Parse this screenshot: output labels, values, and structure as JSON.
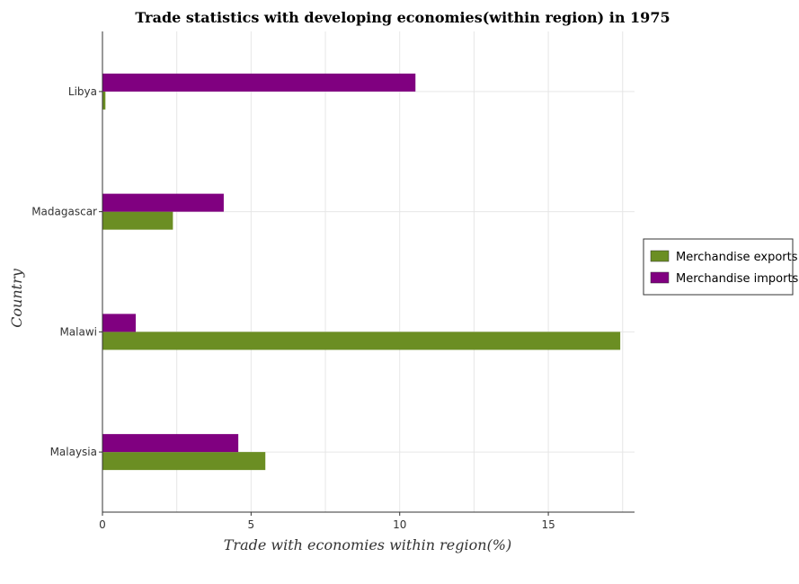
{
  "chart_data": {
    "type": "bar",
    "orientation": "horizontal",
    "title": "Trade statistics with developing economies(within region) in 1975",
    "xlabel": "Trade with economies within region(%)",
    "ylabel": "Country",
    "categories": [
      "Libya",
      "Madagascar",
      "Malawi",
      "Malaysia"
    ],
    "series": [
      {
        "name": "Merchandise exports",
        "color": "#6b8e23",
        "values": [
          0.1,
          2.37,
          17.42,
          5.48
        ]
      },
      {
        "name": "Merchandise imports",
        "color": "#800080",
        "values": [
          10.53,
          4.08,
          1.12,
          4.57
        ]
      }
    ],
    "xlim": [
      0,
      17.9
    ],
    "xticks": [
      0,
      5,
      10,
      15
    ],
    "grid": true,
    "legend_position": "right"
  }
}
